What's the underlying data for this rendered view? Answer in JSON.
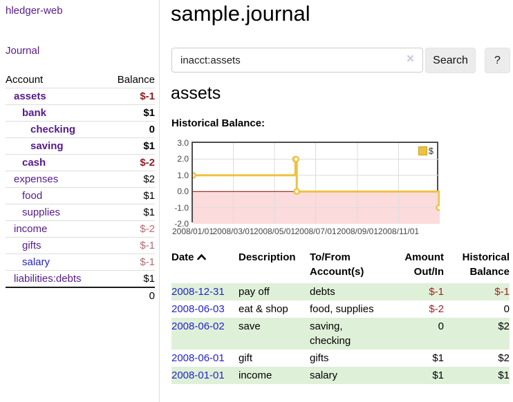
{
  "app": {
    "brand": "hledger-web",
    "nav_journal": "Journal"
  },
  "sidebar": {
    "account_header": "Account",
    "balance_header": "Balance",
    "accounts": [
      {
        "name": "assets",
        "depth": 1,
        "bold": true,
        "balance": "$-1",
        "neg": "strong"
      },
      {
        "name": "bank",
        "depth": 2,
        "bold": true,
        "balance": "$1",
        "neg": "none"
      },
      {
        "name": "checking",
        "depth": 3,
        "bold": true,
        "balance": "0",
        "neg": "none"
      },
      {
        "name": "saving",
        "depth": 3,
        "bold": true,
        "balance": "$1",
        "neg": "none"
      },
      {
        "name": "cash",
        "depth": 2,
        "bold": true,
        "balance": "$-2",
        "neg": "strong"
      },
      {
        "name": "expenses",
        "depth": 1,
        "bold": false,
        "balance": "$2",
        "neg": "none"
      },
      {
        "name": "food",
        "depth": 2,
        "bold": false,
        "balance": "$1",
        "neg": "none"
      },
      {
        "name": "supplies",
        "depth": 2,
        "bold": false,
        "balance": "$1",
        "neg": "none"
      },
      {
        "name": "income",
        "depth": 1,
        "bold": false,
        "balance": "$-2",
        "neg": "muted"
      },
      {
        "name": "gifts",
        "depth": 2,
        "bold": false,
        "balance": "$-1",
        "neg": "muted"
      },
      {
        "name": "salary",
        "depth": 2,
        "bold": false,
        "balance": "$-1",
        "neg": "muted",
        "unvisited": true
      },
      {
        "name": "liabilities:debts",
        "depth": 1,
        "bold": false,
        "balance": "$1",
        "neg": "none"
      }
    ],
    "total": "0"
  },
  "header": {
    "title": "sample.journal"
  },
  "search": {
    "value": "inacct:assets",
    "clear_glyph": "×",
    "button_label": "Search",
    "help_label": "?"
  },
  "account_page": {
    "heading": "assets",
    "chart_title": "Historical Balance:"
  },
  "chart_data": {
    "type": "line",
    "step": true,
    "title": "Historical Balance",
    "series": [
      {
        "name": "$",
        "color": "#edc240",
        "points": [
          [
            "2008-01-01",
            1
          ],
          [
            "2008-06-01",
            2
          ],
          [
            "2008-06-02",
            2
          ],
          [
            "2008-06-03",
            0
          ],
          [
            "2008-12-31",
            -1
          ]
        ]
      }
    ],
    "x_range": [
      "2008-01-01",
      "2009-01-01"
    ],
    "ylim": [
      -2,
      3
    ],
    "yticks": [
      "3.0",
      "2.0",
      "1.0",
      "0.0",
      "-1.0",
      "-2.0"
    ],
    "xticks": [
      {
        "label": "2008/01/01",
        "date": "2008-01-01"
      },
      {
        "label": "2008/03/01",
        "date": "2008-03-01"
      },
      {
        "label": "2008/05/01",
        "date": "2008-05-01"
      },
      {
        "label": "2008/07/01",
        "date": "2008-07-01"
      },
      {
        "label": "2008/09/01",
        "date": "2008-09-01"
      },
      {
        "label": "2008/11/01",
        "date": "2008-11-01"
      }
    ],
    "legend": {
      "label": "$",
      "position": "top-right"
    },
    "grid": true,
    "colors": {
      "negative_fill": "#fbdbdb",
      "zero_line": "#8b0000",
      "gridline": "#dcdcdc",
      "border": "#4d4d4d"
    }
  },
  "register": {
    "headers": {
      "date": "Date",
      "description": "Description",
      "accounts_line1": "To/From",
      "accounts_line2": "Account(s)",
      "amount_line1": "Amount",
      "amount_line2": "Out/In",
      "balance_line1": "Historical",
      "balance_line2": "Balance"
    },
    "rows": [
      {
        "date": "2008-12-31",
        "description": "pay off",
        "accounts": "debts",
        "amount": "$-1",
        "amount_neg": true,
        "balance": "$-1",
        "balance_neg": true,
        "shade": true
      },
      {
        "date": "2008-06-03",
        "description": "eat & shop",
        "accounts": "food, supplies",
        "amount": "$-2",
        "amount_neg": true,
        "balance": "0",
        "balance_neg": false,
        "shade": false
      },
      {
        "date": "2008-06-02",
        "description": "save",
        "accounts": "saving,\nchecking",
        "amount": "0",
        "amount_neg": false,
        "balance": "$2",
        "balance_neg": false,
        "shade": true
      },
      {
        "date": "2008-06-01",
        "description": "gift",
        "accounts": "gifts",
        "amount": "$1",
        "amount_neg": false,
        "balance": "$2",
        "balance_neg": false,
        "shade": false
      },
      {
        "date": "2008-01-01",
        "description": "income",
        "accounts": "salary",
        "amount": "$1",
        "amount_neg": false,
        "balance": "$1",
        "balance_neg": false,
        "shade": true
      }
    ]
  },
  "colors": {
    "link_purple": "#551a8b",
    "link_blue": "#2323cc",
    "negative_strong": "#8f1d21",
    "negative_muted": "#b36a72",
    "row_shade_green": "#dff0d8",
    "series_yellow": "#edc240"
  }
}
